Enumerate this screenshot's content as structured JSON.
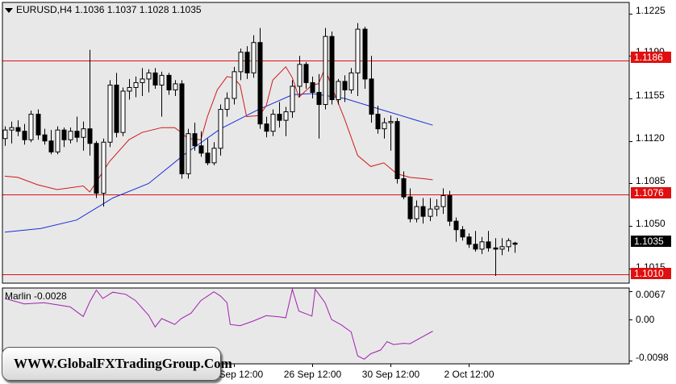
{
  "header": {
    "symbol": "EURUSD,H4",
    "open": "1.1036",
    "high": "1.1037",
    "low": "1.1028",
    "close": "1.1035"
  },
  "colors": {
    "background": "#e8e8e8",
    "sma_slow": "#1a2fd6",
    "sma_fast": "#d11a1a",
    "level": "#e01010",
    "oscillator": "#a020b0",
    "current_label_bg": "#000000"
  },
  "price_axis": {
    "ticks": [
      "1.1225",
      "1.1190",
      "1.1155",
      "1.1120",
      "1.1085",
      "1.1050",
      "1.1015"
    ]
  },
  "levels": [
    {
      "value": 1.1186,
      "label": "1.1186"
    },
    {
      "value": 1.1076,
      "label": "1.1076"
    },
    {
      "value": 1.101,
      "label": "1.1010"
    }
  ],
  "current_price": {
    "value": 1.1035,
    "label": "1.1035"
  },
  "indicator": {
    "name": "Marlin",
    "value": "-0.0028",
    "ticks": [
      "0.0067",
      "0.00",
      "-0.0098"
    ]
  },
  "time_axis": {
    "labels": [
      {
        "text": "24 Sep 12:00",
        "bar": 35
      },
      {
        "text": "26 Sep 12:00",
        "bar": 47
      },
      {
        "text": "30 Sep 12:00",
        "bar": 59
      },
      {
        "text": "2 Oct 12:00",
        "bar": 71
      }
    ]
  },
  "watermark": "WWW.GlobalFXTradingGroup.Com",
  "chart_data": {
    "type": "candlestick",
    "title": "EURUSD,H4",
    "ylim": [
      1.1003,
      1.1234
    ],
    "candles": [
      [
        1.1122,
        1.1132,
        1.1116,
        1.1129
      ],
      [
        1.1129,
        1.1136,
        1.1118,
        1.1131
      ],
      [
        1.1131,
        1.1137,
        1.1124,
        1.1128
      ],
      [
        1.1128,
        1.1134,
        1.1117,
        1.1121
      ],
      [
        1.1121,
        1.1145,
        1.1119,
        1.1142
      ],
      [
        1.1142,
        1.1146,
        1.1121,
        1.1125
      ],
      [
        1.1125,
        1.113,
        1.1117,
        1.112
      ],
      [
        1.112,
        1.1129,
        1.1109,
        1.1111
      ],
      [
        1.1111,
        1.1132,
        1.1109,
        1.1129
      ],
      [
        1.1129,
        1.1131,
        1.1115,
        1.1121
      ],
      [
        1.1121,
        1.1131,
        1.1118,
        1.1128
      ],
      [
        1.1128,
        1.114,
        1.1119,
        1.1123
      ],
      [
        1.1123,
        1.1136,
        1.1112,
        1.113
      ],
      [
        1.113,
        1.1195,
        1.1108,
        1.1118
      ],
      [
        1.1118,
        1.112,
        1.1073,
        1.1077
      ],
      [
        1.1077,
        1.1122,
        1.1066,
        1.1119
      ],
      [
        1.1119,
        1.117,
        1.1115,
        1.1166
      ],
      [
        1.1166,
        1.1176,
        1.1123,
        1.1127
      ],
      [
        1.1127,
        1.1164,
        1.1124,
        1.1161
      ],
      [
        1.1161,
        1.1171,
        1.1154,
        1.1164
      ],
      [
        1.1164,
        1.1173,
        1.1156,
        1.1168
      ],
      [
        1.1168,
        1.118,
        1.1157,
        1.1171
      ],
      [
        1.1171,
        1.1179,
        1.116,
        1.1176
      ],
      [
        1.1176,
        1.118,
        1.1163,
        1.1166
      ],
      [
        1.1166,
        1.1177,
        1.114,
        1.1174
      ],
      [
        1.1174,
        1.1176,
        1.1158,
        1.1162
      ],
      [
        1.1162,
        1.117,
        1.1157,
        1.1167
      ],
      [
        1.1167,
        1.117,
        1.1089,
        1.1093
      ],
      [
        1.1093,
        1.113,
        1.1089,
        1.1126
      ],
      [
        1.1126,
        1.1135,
        1.1112,
        1.1116
      ],
      [
        1.1116,
        1.1128,
        1.1107,
        1.111
      ],
      [
        1.111,
        1.1122,
        1.11,
        1.1102
      ],
      [
        1.1102,
        1.1119,
        1.11,
        1.1114
      ],
      [
        1.1114,
        1.115,
        1.1108,
        1.1146
      ],
      [
        1.1146,
        1.116,
        1.114,
        1.1155
      ],
      [
        1.1155,
        1.1181,
        1.115,
        1.1177
      ],
      [
        1.1177,
        1.1196,
        1.117,
        1.1193
      ],
      [
        1.1193,
        1.1198,
        1.1171,
        1.1176
      ],
      [
        1.1176,
        1.1207,
        1.1172,
        1.1201
      ],
      [
        1.1201,
        1.1213,
        1.113,
        1.1134
      ],
      [
        1.1134,
        1.114,
        1.1123,
        1.1128
      ],
      [
        1.1128,
        1.1146,
        1.1124,
        1.1142
      ],
      [
        1.1142,
        1.1152,
        1.1131,
        1.1137
      ],
      [
        1.1137,
        1.1148,
        1.1124,
        1.1144
      ],
      [
        1.1144,
        1.117,
        1.1139,
        1.1165
      ],
      [
        1.1165,
        1.119,
        1.1156,
        1.1183
      ],
      [
        1.1183,
        1.1185,
        1.1163,
        1.1168
      ],
      [
        1.1168,
        1.1173,
        1.1155,
        1.116
      ],
      [
        1.116,
        1.1175,
        1.1122,
        1.115
      ],
      [
        1.115,
        1.1213,
        1.1146,
        1.1206
      ],
      [
        1.1206,
        1.121,
        1.115,
        1.1154
      ],
      [
        1.1154,
        1.1171,
        1.115,
        1.1169
      ],
      [
        1.1169,
        1.1174,
        1.1152,
        1.1162
      ],
      [
        1.1162,
        1.118,
        1.1159,
        1.1176
      ],
      [
        1.1176,
        1.1217,
        1.1157,
        1.1212
      ],
      [
        1.1212,
        1.1214,
        1.1163,
        1.1171
      ],
      [
        1.1171,
        1.119,
        1.1135,
        1.1142
      ],
      [
        1.1142,
        1.1149,
        1.1126,
        1.113
      ],
      [
        1.113,
        1.1139,
        1.1122,
        1.1135
      ],
      [
        1.1135,
        1.1141,
        1.1112,
        1.1136
      ],
      [
        1.1136,
        1.1139,
        1.1085,
        1.1089
      ],
      [
        1.1089,
        1.1095,
        1.1072,
        1.1074
      ],
      [
        1.1074,
        1.1081,
        1.1053,
        1.1056
      ],
      [
        1.1056,
        1.1071,
        1.1053,
        1.1066
      ],
      [
        1.1066,
        1.1073,
        1.1052,
        1.1058
      ],
      [
        1.1058,
        1.1073,
        1.1054,
        1.1064
      ],
      [
        1.1064,
        1.1072,
        1.1058,
        1.1066
      ],
      [
        1.1066,
        1.1081,
        1.106,
        1.1075
      ],
      [
        1.1075,
        1.1079,
        1.105,
        1.1054
      ],
      [
        1.1054,
        1.1057,
        1.1037,
        1.1047
      ],
      [
        1.1047,
        1.105,
        1.1038,
        1.1041
      ],
      [
        1.1041,
        1.1044,
        1.1032,
        1.1035
      ],
      [
        1.1035,
        1.1046,
        1.1029,
        1.1031
      ],
      [
        1.1031,
        1.1041,
        1.1027,
        1.1037
      ],
      [
        1.1037,
        1.1046,
        1.1029,
        1.1032
      ],
      [
        1.1032,
        1.104,
        1.1009,
        1.1031
      ],
      [
        1.1031,
        1.104,
        1.1026,
        1.1033
      ],
      [
        1.1033,
        1.104,
        1.1029,
        1.1038
      ],
      [
        1.1036,
        1.1037,
        1.1028,
        1.1035
      ]
    ],
    "sma_slow": [
      [
        0,
        1.1045
      ],
      [
        11,
        1.1048
      ],
      [
        22,
        1.1055
      ],
      [
        33,
        1.1073
      ],
      [
        44,
        1.1085
      ],
      [
        55,
        1.1109
      ],
      [
        66,
        1.113
      ],
      [
        77,
        1.1145
      ],
      [
        88,
        1.1158
      ],
      [
        94,
        1.1159
      ],
      [
        104,
        1.1155
      ],
      [
        115,
        1.1146
      ],
      [
        126,
        1.1137
      ],
      [
        131,
        1.1133
      ]
    ],
    "sma_fast": [
      [
        0,
        1.1091
      ],
      [
        4,
        1.109
      ],
      [
        10,
        1.1084
      ],
      [
        16,
        1.108
      ],
      [
        24,
        1.1083
      ],
      [
        26,
        1.1078
      ],
      [
        32,
        1.1103
      ],
      [
        38,
        1.1121
      ],
      [
        42,
        1.1127
      ],
      [
        48,
        1.1131
      ],
      [
        52,
        1.1131
      ],
      [
        54,
        1.1127
      ],
      [
        56,
        1.1122
      ],
      [
        60,
        1.1121
      ],
      [
        62,
        1.114
      ],
      [
        65,
        1.1162
      ],
      [
        68,
        1.1173
      ],
      [
        70,
        1.1172
      ],
      [
        72,
        1.1166
      ],
      [
        74,
        1.114
      ],
      [
        78,
        1.1141
      ],
      [
        80,
        1.1149
      ],
      [
        82,
        1.117
      ],
      [
        86,
        1.1181
      ],
      [
        88,
        1.1172
      ],
      [
        90,
        1.1156
      ],
      [
        94,
        1.1166
      ],
      [
        96,
        1.1167
      ],
      [
        98,
        1.118
      ],
      [
        100,
        1.1165
      ],
      [
        104,
        1.1138
      ],
      [
        108,
        1.1108
      ],
      [
        112,
        1.1099
      ],
      [
        116,
        1.1102
      ],
      [
        120,
        1.1093
      ],
      [
        124,
        1.109
      ],
      [
        128,
        1.1089
      ],
      [
        131,
        1.1088
      ]
    ],
    "marlin": [
      [
        0,
        0.005
      ],
      [
        6,
        0.0037
      ],
      [
        12,
        0.004
      ],
      [
        20,
        0.003
      ],
      [
        24,
        0.0007
      ],
      [
        26,
        0.0042
      ],
      [
        28,
        0.007
      ],
      [
        30,
        0.005
      ],
      [
        33,
        0.0065
      ],
      [
        37,
        0.006
      ],
      [
        40,
        0.0045
      ],
      [
        44,
        0.001
      ],
      [
        46,
        -0.0018
      ],
      [
        48,
        0.0002
      ],
      [
        50,
        -0.0005
      ],
      [
        52,
        -0.0012
      ],
      [
        54,
        0.0002
      ],
      [
        57,
        0.0015
      ],
      [
        60,
        0.0045
      ],
      [
        64,
        0.0066
      ],
      [
        66,
        0.0056
      ],
      [
        68,
        0.004
      ],
      [
        69,
        -0.0012
      ],
      [
        72,
        -0.0015
      ],
      [
        76,
        -0.0004
      ],
      [
        80,
        0.0009
      ],
      [
        84,
        0.0006
      ],
      [
        86,
        0.0004
      ],
      [
        88,
        0.0072
      ],
      [
        90,
        0.002
      ],
      [
        94,
        0.0008
      ],
      [
        95,
        0.0072
      ],
      [
        98,
        0.004
      ],
      [
        100,
        0.0
      ],
      [
        103,
        -0.0013
      ],
      [
        106,
        -0.003
      ],
      [
        108,
        -0.0087
      ],
      [
        110,
        -0.0095
      ],
      [
        112,
        -0.0082
      ],
      [
        115,
        -0.0073
      ],
      [
        117,
        -0.0053
      ],
      [
        119,
        -0.006
      ],
      [
        122,
        -0.0057
      ],
      [
        124,
        -0.0058
      ],
      [
        127,
        -0.0045
      ],
      [
        131,
        -0.0028
      ]
    ],
    "marlin_ylim": [
      -0.0106,
      0.0075
    ]
  }
}
